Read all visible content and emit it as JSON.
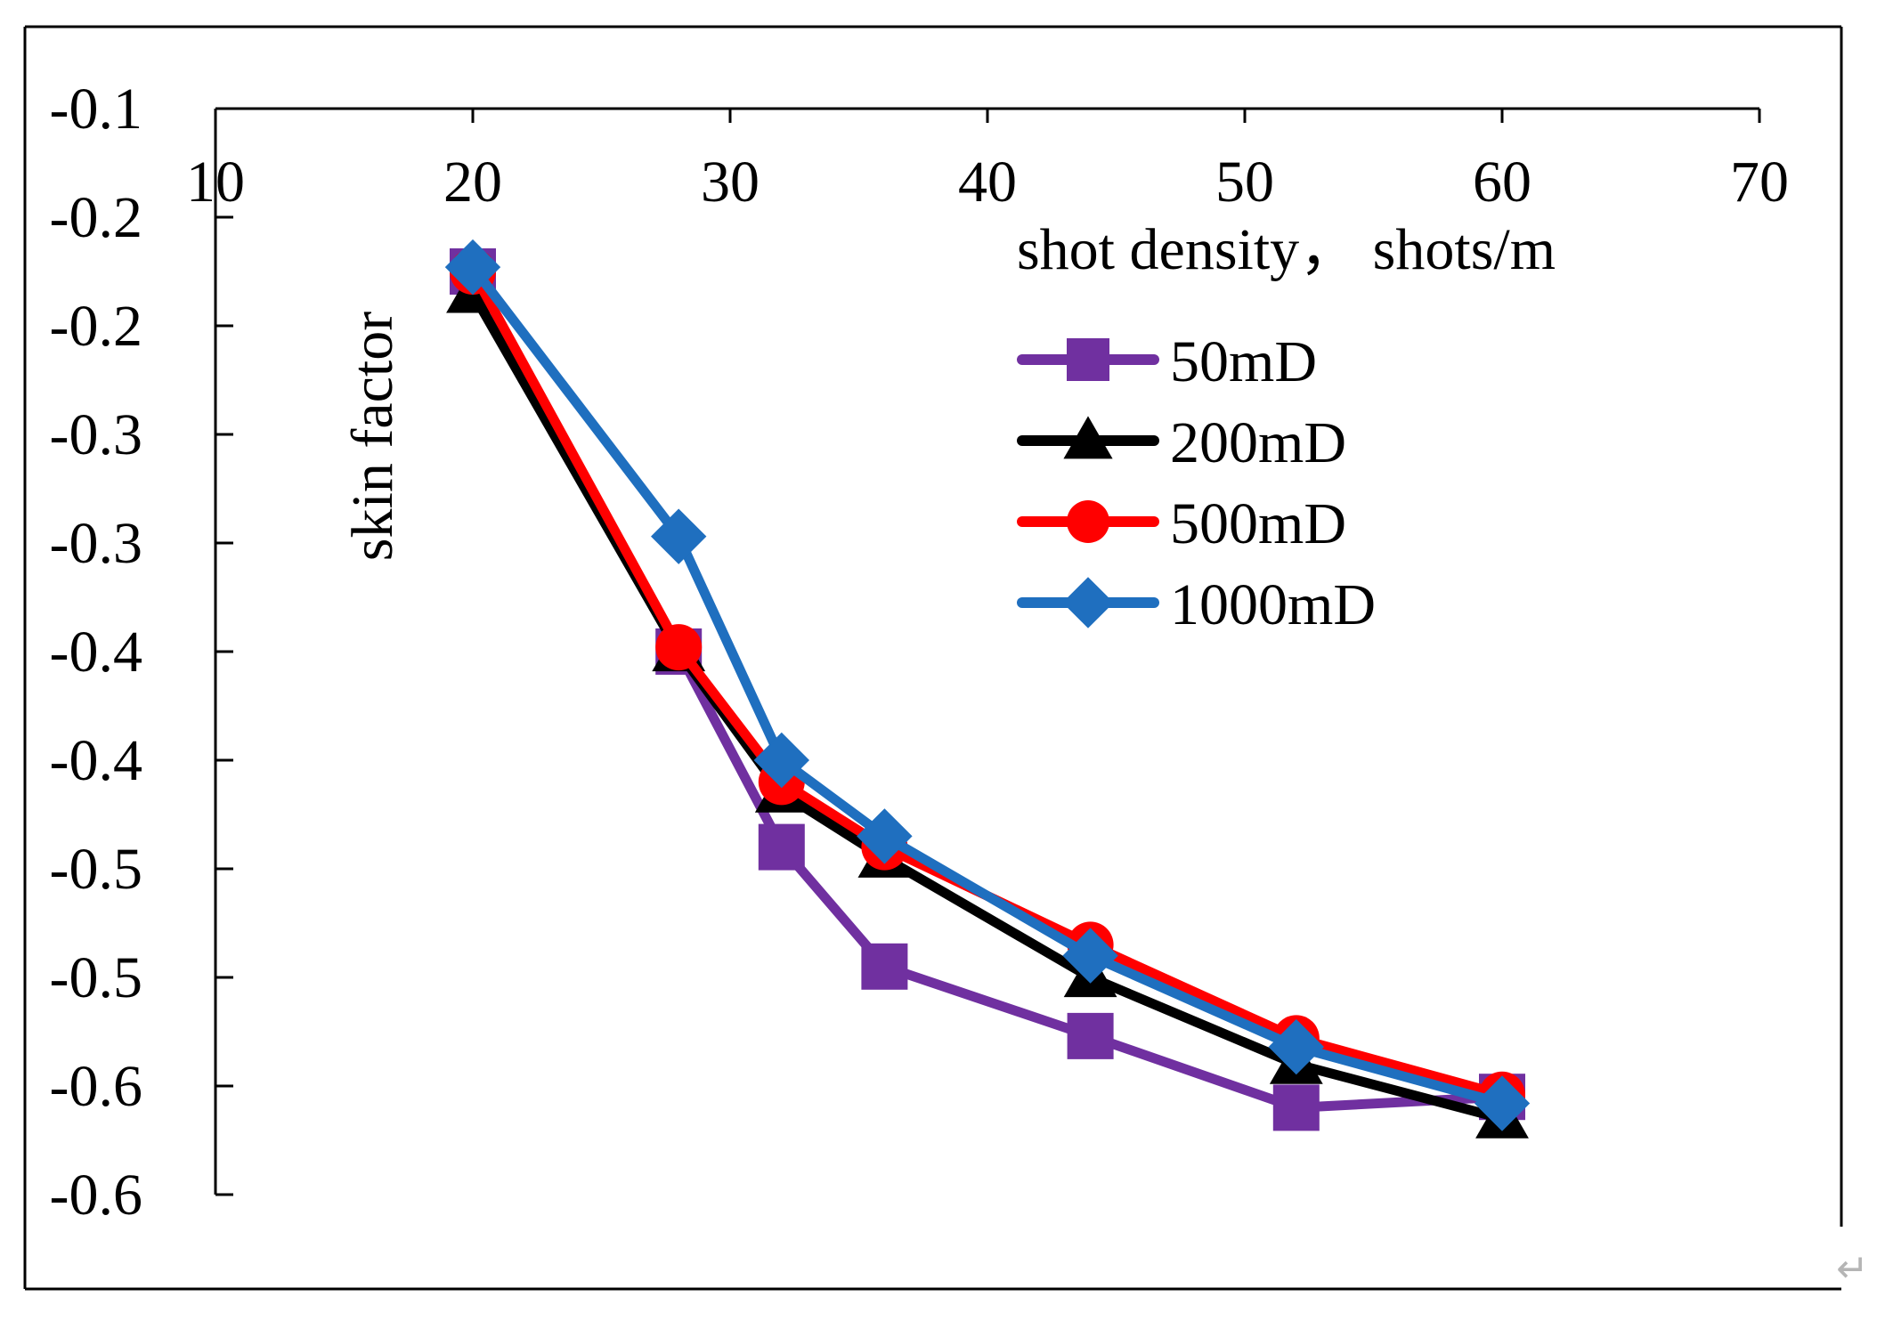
{
  "chart_data": {
    "type": "line",
    "title": "",
    "xlabel": "shot density， shots/m",
    "ylabel": "skin factor",
    "xlim": [
      10,
      70
    ],
    "ylim": [
      -0.6,
      -0.1
    ],
    "x_ticks": [
      10,
      20,
      30,
      40,
      50,
      60,
      70
    ],
    "x_tick_labels": [
      "10",
      "20",
      "30",
      "40",
      "50",
      "60",
      "70"
    ],
    "y_ticks": [
      -0.1,
      -0.15,
      -0.2,
      -0.25,
      -0.3,
      -0.35,
      -0.4,
      -0.45,
      -0.5,
      -0.55,
      -0.6
    ],
    "y_tick_labels": [
      "-0.1",
      "-0.2",
      "-0.2",
      "-0.3",
      "-0.3",
      "-0.4",
      "-0.4",
      "-0.5",
      "-0.5",
      "-0.6",
      "-0.6"
    ],
    "x_axis_position": "top",
    "grid": false,
    "legend_position": "upper-right inside plot",
    "x": [
      20,
      28,
      32,
      36,
      44,
      52,
      60
    ],
    "series": [
      {
        "name": "50mD",
        "color": "#7030a0",
        "marker": "square",
        "values": [
          -0.175,
          -0.35,
          -0.44,
          -0.495,
          -0.527,
          -0.56,
          -0.555
        ]
      },
      {
        "name": "200mD",
        "color": "#000000",
        "marker": "triangle",
        "values": [
          -0.185,
          -0.35,
          -0.415,
          -0.445,
          -0.5,
          -0.54,
          -0.565
        ]
      },
      {
        "name": "500mD",
        "color": "#ff0000",
        "marker": "circle",
        "values": [
          -0.175,
          -0.348,
          -0.41,
          -0.44,
          -0.485,
          -0.528,
          -0.554
        ]
      },
      {
        "name": "1000mD",
        "color": "#1f6fbf",
        "marker": "diamond",
        "values": [
          -0.173,
          -0.297,
          -0.4,
          -0.435,
          -0.49,
          -0.532,
          -0.558
        ]
      }
    ]
  },
  "page_marks": {
    "return_symbol": "↵"
  }
}
